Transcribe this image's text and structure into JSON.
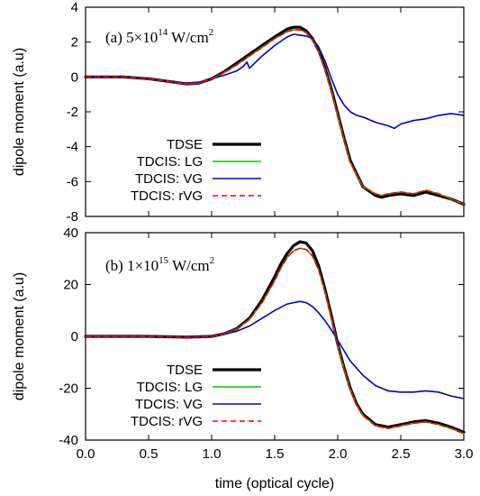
{
  "chart_data": [
    {
      "type": "line",
      "title": "(a) 5×10",
      "title_exponent": "14",
      "title_unit": " W/cm",
      "title_unit_exponent": "2",
      "xlabel": "",
      "ylabel": "dipole moment (a.u)",
      "xlim": [
        0.0,
        3.0
      ],
      "ylim": [
        -8,
        4
      ],
      "yticks": [
        4,
        2,
        0,
        -2,
        -4,
        -6,
        -8
      ],
      "ytick_labels": [
        "4",
        "2",
        "0",
        "-2",
        "-4",
        "-6",
        "-8"
      ],
      "legend_position": "lower-left",
      "series": [
        {
          "name": "TDSE",
          "color": "#000000",
          "dash": "solid",
          "x": [
            0.0,
            0.3,
            0.5,
            0.7,
            0.8,
            0.9,
            1.0,
            1.1,
            1.2,
            1.3,
            1.4,
            1.5,
            1.6,
            1.65,
            1.7,
            1.75,
            1.8,
            1.85,
            1.9,
            1.95,
            2.0,
            2.05,
            2.1,
            2.2,
            2.3,
            2.35,
            2.4,
            2.5,
            2.6,
            2.7,
            2.8,
            2.9,
            3.0
          ],
          "y": [
            0.0,
            0.0,
            -0.1,
            -0.3,
            -0.4,
            -0.35,
            -0.1,
            0.3,
            0.8,
            1.3,
            1.8,
            2.3,
            2.75,
            2.85,
            2.85,
            2.65,
            2.2,
            1.5,
            0.5,
            -0.7,
            -2.1,
            -3.5,
            -4.8,
            -6.3,
            -6.8,
            -6.9,
            -6.8,
            -6.7,
            -6.8,
            -6.6,
            -6.8,
            -7.0,
            -7.3
          ]
        },
        {
          "name": "TDCIS: LG",
          "color": "#00cc00",
          "dash": "solid",
          "x": [
            0.0,
            0.3,
            0.5,
            0.7,
            0.8,
            0.9,
            1.0,
            1.1,
            1.2,
            1.3,
            1.4,
            1.5,
            1.6,
            1.65,
            1.7,
            1.75,
            1.8,
            1.85,
            1.9,
            1.95,
            2.0,
            2.05,
            2.1,
            2.2,
            2.3,
            2.35,
            2.4,
            2.5,
            2.6,
            2.7,
            2.8,
            2.9,
            3.0
          ],
          "y": [
            0.0,
            0.0,
            -0.1,
            -0.3,
            -0.4,
            -0.35,
            -0.1,
            0.25,
            0.7,
            1.2,
            1.7,
            2.2,
            2.6,
            2.7,
            2.7,
            2.55,
            2.1,
            1.4,
            0.4,
            -0.8,
            -2.2,
            -3.6,
            -4.9,
            -6.3,
            -6.7,
            -6.8,
            -6.7,
            -6.6,
            -6.7,
            -6.5,
            -6.7,
            -7.0,
            -7.3
          ]
        },
        {
          "name": "TDCIS: VG",
          "color": "#0000cc",
          "dash": "solid",
          "x": [
            0.0,
            0.3,
            0.5,
            0.7,
            0.8,
            0.9,
            1.0,
            1.1,
            1.2,
            1.25,
            1.28,
            1.3,
            1.4,
            1.5,
            1.6,
            1.65,
            1.7,
            1.75,
            1.8,
            1.85,
            1.9,
            1.95,
            2.0,
            2.05,
            2.1,
            2.15,
            2.2,
            2.3,
            2.4,
            2.45,
            2.5,
            2.6,
            2.7,
            2.8,
            2.9,
            3.0
          ],
          "y": [
            0.0,
            0.0,
            -0.1,
            -0.3,
            -0.35,
            -0.3,
            -0.1,
            0.1,
            0.35,
            0.6,
            0.85,
            0.5,
            1.2,
            1.8,
            2.3,
            2.45,
            2.4,
            2.35,
            2.2,
            1.7,
            0.9,
            -0.1,
            -1.0,
            -1.6,
            -2.0,
            -2.2,
            -2.3,
            -2.6,
            -2.8,
            -2.95,
            -2.7,
            -2.5,
            -2.4,
            -2.2,
            -2.1,
            -2.2
          ]
        },
        {
          "name": "TDCIS: rVG",
          "color": "#ff0000",
          "dash": "dashed",
          "x": [
            0.0,
            0.3,
            0.5,
            0.7,
            0.8,
            0.9,
            1.0,
            1.1,
            1.2,
            1.3,
            1.4,
            1.5,
            1.6,
            1.65,
            1.7,
            1.75,
            1.8,
            1.85,
            1.9,
            1.95,
            2.0,
            2.05,
            2.1,
            2.2,
            2.3,
            2.35,
            2.4,
            2.5,
            2.6,
            2.7,
            2.8,
            2.9,
            3.0
          ],
          "y": [
            0.0,
            0.0,
            -0.1,
            -0.3,
            -0.4,
            -0.35,
            -0.1,
            0.25,
            0.7,
            1.2,
            1.7,
            2.2,
            2.6,
            2.7,
            2.7,
            2.55,
            2.1,
            1.4,
            0.4,
            -0.8,
            -2.2,
            -3.6,
            -4.9,
            -6.3,
            -6.7,
            -6.8,
            -6.7,
            -6.6,
            -6.7,
            -6.5,
            -6.7,
            -7.0,
            -7.3
          ]
        }
      ]
    },
    {
      "type": "line",
      "title": "(b) 1×10",
      "title_exponent": "15",
      "title_unit": " W/cm",
      "title_unit_exponent": "2",
      "xlabel": "time (optical cycle)",
      "ylabel": "dipole moment (a.u)",
      "xlim": [
        0.0,
        3.0
      ],
      "ylim": [
        -40,
        40
      ],
      "xticks": [
        0.0,
        0.5,
        1.0,
        1.5,
        2.0,
        2.5,
        3.0
      ],
      "xtick_labels": [
        "0.0",
        "0.5",
        "1.0",
        "1.5",
        "2.0",
        "2.5",
        "3.0"
      ],
      "yticks": [
        40,
        20,
        0,
        -20,
        -40
      ],
      "ytick_labels": [
        "40",
        "20",
        "0",
        "-20",
        "-40"
      ],
      "legend_position": "lower-left",
      "series": [
        {
          "name": "TDSE",
          "color": "#000000",
          "dash": "solid",
          "x": [
            0.0,
            0.5,
            0.8,
            1.0,
            1.1,
            1.2,
            1.3,
            1.4,
            1.5,
            1.55,
            1.6,
            1.65,
            1.7,
            1.75,
            1.8,
            1.85,
            1.9,
            1.95,
            2.0,
            2.05,
            2.1,
            2.15,
            2.2,
            2.3,
            2.4,
            2.5,
            2.6,
            2.7,
            2.8,
            2.9,
            3.0
          ],
          "y": [
            0.0,
            0.0,
            -0.3,
            0.0,
            1.0,
            3.0,
            7.0,
            14.0,
            23.0,
            28.0,
            32.0,
            35.0,
            36.5,
            36.0,
            33.0,
            27.0,
            18.0,
            8.0,
            -3.0,
            -12.0,
            -20.0,
            -26.0,
            -30.0,
            -34.0,
            -35.0,
            -34.0,
            -33.0,
            -32.5,
            -33.5,
            -35.0,
            -37.0
          ]
        },
        {
          "name": "TDCIS: LG",
          "color": "#00cc00",
          "dash": "solid",
          "x": [
            0.0,
            0.5,
            0.8,
            1.0,
            1.1,
            1.2,
            1.3,
            1.4,
            1.5,
            1.55,
            1.6,
            1.65,
            1.7,
            1.75,
            1.8,
            1.85,
            1.9,
            1.95,
            2.0,
            2.05,
            2.1,
            2.15,
            2.2,
            2.3,
            2.4,
            2.5,
            2.6,
            2.7,
            2.8,
            2.9,
            3.0
          ],
          "y": [
            0.0,
            0.0,
            -0.3,
            0.0,
            1.0,
            2.8,
            6.5,
            13.0,
            21.5,
            26.5,
            30.5,
            33.0,
            34.0,
            33.5,
            31.0,
            25.5,
            17.0,
            7.0,
            -3.5,
            -12.5,
            -20.5,
            -26.5,
            -30.5,
            -34.5,
            -35.5,
            -34.5,
            -33.5,
            -33.0,
            -34.0,
            -35.5,
            -37.5
          ]
        },
        {
          "name": "TDCIS: VG",
          "color": "#0000cc",
          "dash": "solid",
          "x": [
            0.0,
            0.5,
            0.8,
            1.0,
            1.1,
            1.2,
            1.3,
            1.4,
            1.5,
            1.6,
            1.7,
            1.75,
            1.8,
            1.85,
            1.9,
            1.95,
            2.0,
            2.05,
            2.1,
            2.2,
            2.3,
            2.4,
            2.5,
            2.6,
            2.7,
            2.8,
            2.9,
            3.0
          ],
          "y": [
            0.0,
            0.0,
            -0.3,
            0.0,
            0.8,
            2.0,
            4.0,
            7.0,
            10.0,
            12.5,
            13.5,
            13.0,
            11.5,
            9.0,
            6.0,
            2.5,
            -1.5,
            -5.5,
            -9.5,
            -15.0,
            -19.0,
            -21.0,
            -21.5,
            -21.5,
            -21.0,
            -21.5,
            -23.0,
            -24.0
          ]
        },
        {
          "name": "TDCIS: rVG",
          "color": "#ff0000",
          "dash": "dashed",
          "x": [
            0.0,
            0.5,
            0.8,
            1.0,
            1.1,
            1.2,
            1.3,
            1.4,
            1.5,
            1.55,
            1.6,
            1.65,
            1.7,
            1.75,
            1.8,
            1.85,
            1.9,
            1.95,
            2.0,
            2.05,
            2.1,
            2.15,
            2.2,
            2.3,
            2.4,
            2.5,
            2.6,
            2.7,
            2.8,
            2.9,
            3.0
          ],
          "y": [
            0.0,
            0.0,
            -0.3,
            0.0,
            1.0,
            2.8,
            6.5,
            13.0,
            21.5,
            26.5,
            30.5,
            33.0,
            34.0,
            33.5,
            31.0,
            25.5,
            17.0,
            7.0,
            -3.5,
            -12.5,
            -20.5,
            -26.5,
            -30.5,
            -34.5,
            -35.5,
            -34.5,
            -33.5,
            -33.0,
            -34.0,
            -35.5,
            -37.5
          ]
        }
      ]
    }
  ]
}
